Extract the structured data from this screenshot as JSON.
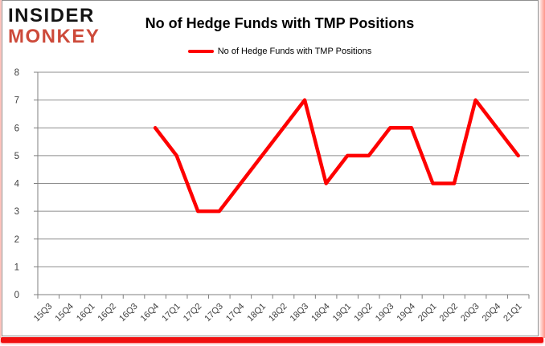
{
  "header": {
    "logo": {
      "line1": "INSIDER",
      "line2": "MONKEY",
      "line1_color": "#141414",
      "line2_color": "#cd4a3a"
    },
    "title": "No of Hedge Funds with TMP Positions"
  },
  "legend": {
    "label": "No of Hedge Funds with TMP Positions",
    "swatch_color": "#fe0000"
  },
  "chart_data": {
    "type": "line",
    "title": "No of Hedge Funds with TMP Positions",
    "categories": [
      "15Q3",
      "15Q4",
      "16Q1",
      "16Q2",
      "16Q3",
      "16Q4",
      "17Q1",
      "17Q2",
      "17Q3",
      "17Q4",
      "18Q1",
      "18Q2",
      "18Q3",
      "18Q4",
      "19Q1",
      "19Q2",
      "19Q3",
      "19Q4",
      "20Q1",
      "20Q2",
      "20Q3",
      "20Q4",
      "21Q1"
    ],
    "series": [
      {
        "name": "No of Hedge Funds with TMP Positions",
        "color": "#fe0000",
        "values": [
          null,
          null,
          null,
          null,
          null,
          6,
          5,
          3,
          3,
          4,
          5,
          6,
          7,
          4,
          5,
          5,
          6,
          6,
          4,
          4,
          7,
          6,
          5
        ]
      }
    ],
    "xlabel": "",
    "ylabel": "",
    "ylim": [
      0,
      8
    ],
    "yticks": [
      0,
      1,
      2,
      3,
      4,
      5,
      6,
      7,
      8
    ],
    "grid": true,
    "legend_position": "top",
    "gridline_color": "#8e8e8e",
    "axis_color": "#7f7f7f",
    "tick_label_color": "#3f3f3f"
  }
}
